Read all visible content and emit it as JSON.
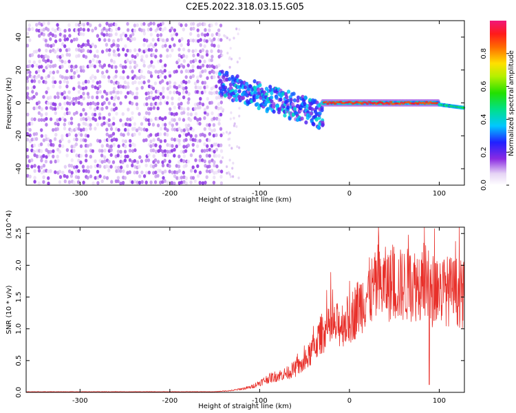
{
  "chart_data": [
    {
      "type": "heatmap",
      "title": "C2E5.2022.318.03.15.G05",
      "xlabel": "Height of straight line (km)",
      "ylabel": "Frequency (Hz)",
      "xlim": [
        -360,
        128
      ],
      "ylim": [
        -50,
        50
      ],
      "xticks": [
        -300,
        -200,
        -100,
        0,
        100
      ],
      "xtick_labels": [
        "-300",
        "-200",
        "-100",
        "0",
        "100"
      ],
      "yticks": [
        -40,
        -20,
        0,
        20,
        40
      ],
      "ytick_labels": [
        "-40",
        "-20",
        "0",
        "20",
        "40"
      ],
      "colorbar": {
        "label": "Normalized spectral amplitude",
        "range": [
          0.0,
          1.0
        ],
        "ticks": [
          0.0,
          0.2,
          0.4,
          0.6,
          0.8
        ],
        "tick_labels": [
          "0.0",
          "0.2",
          "0.4",
          "0.6",
          "0.8"
        ],
        "colormap": "rainbow (white-purple-blue-cyan-green-yellow-red-magenta)"
      },
      "regions": [
        {
          "x_range": [
            -360,
            -140
          ],
          "freq_range": [
            -50,
            50
          ],
          "amplitude": 0.05,
          "description": "broadband noise"
        },
        {
          "x_range": [
            -145,
            -30
          ],
          "freq_center_start": 12,
          "freq_center_end": -8,
          "freq_halfwidth": 8,
          "amplitude": 0.3
        },
        {
          "x_range": [
            -30,
            100
          ],
          "freq_center": 0,
          "freq_halfwidth": 2,
          "amplitude": 0.9
        },
        {
          "x_range": [
            100,
            128
          ],
          "freq_center": -3,
          "freq_halfwidth": 2,
          "amplitude": 0.5
        }
      ],
      "grid": false
    },
    {
      "type": "line",
      "xlabel": "Height of straight line (km)",
      "ylabel": "SNR (10 * v/v)",
      "y_multiplier": "(x10^4)",
      "xlim": [
        -360,
        128
      ],
      "ylim": [
        0,
        2.6
      ],
      "xticks": [
        -300,
        -200,
        -100,
        0,
        100
      ],
      "xtick_labels": [
        "-300",
        "-200",
        "-100",
        "0",
        "100"
      ],
      "yticks": [
        0.0,
        0.5,
        1.0,
        1.5,
        2.0,
        2.5
      ],
      "ytick_labels": [
        "0.0",
        "0.5",
        "1.0",
        "1.5",
        "2.0",
        "2.5"
      ],
      "color": "#e8302a",
      "envelope_x": [
        -360,
        -150,
        -130,
        -110,
        -100,
        -90,
        -70,
        -50,
        -40,
        -30,
        -20,
        0,
        10,
        20,
        30,
        40,
        60,
        80,
        85,
        90,
        95,
        100,
        110,
        120,
        128
      ],
      "envelope_y": [
        0.01,
        0.01,
        0.03,
        0.08,
        0.15,
        0.22,
        0.3,
        0.45,
        0.7,
        0.95,
        1.0,
        1.15,
        1.35,
        1.55,
        1.65,
        1.7,
        1.68,
        1.72,
        1.75,
        1.5,
        1.68,
        1.62,
        1.6,
        1.58,
        1.52
      ],
      "grid": false
    }
  ]
}
